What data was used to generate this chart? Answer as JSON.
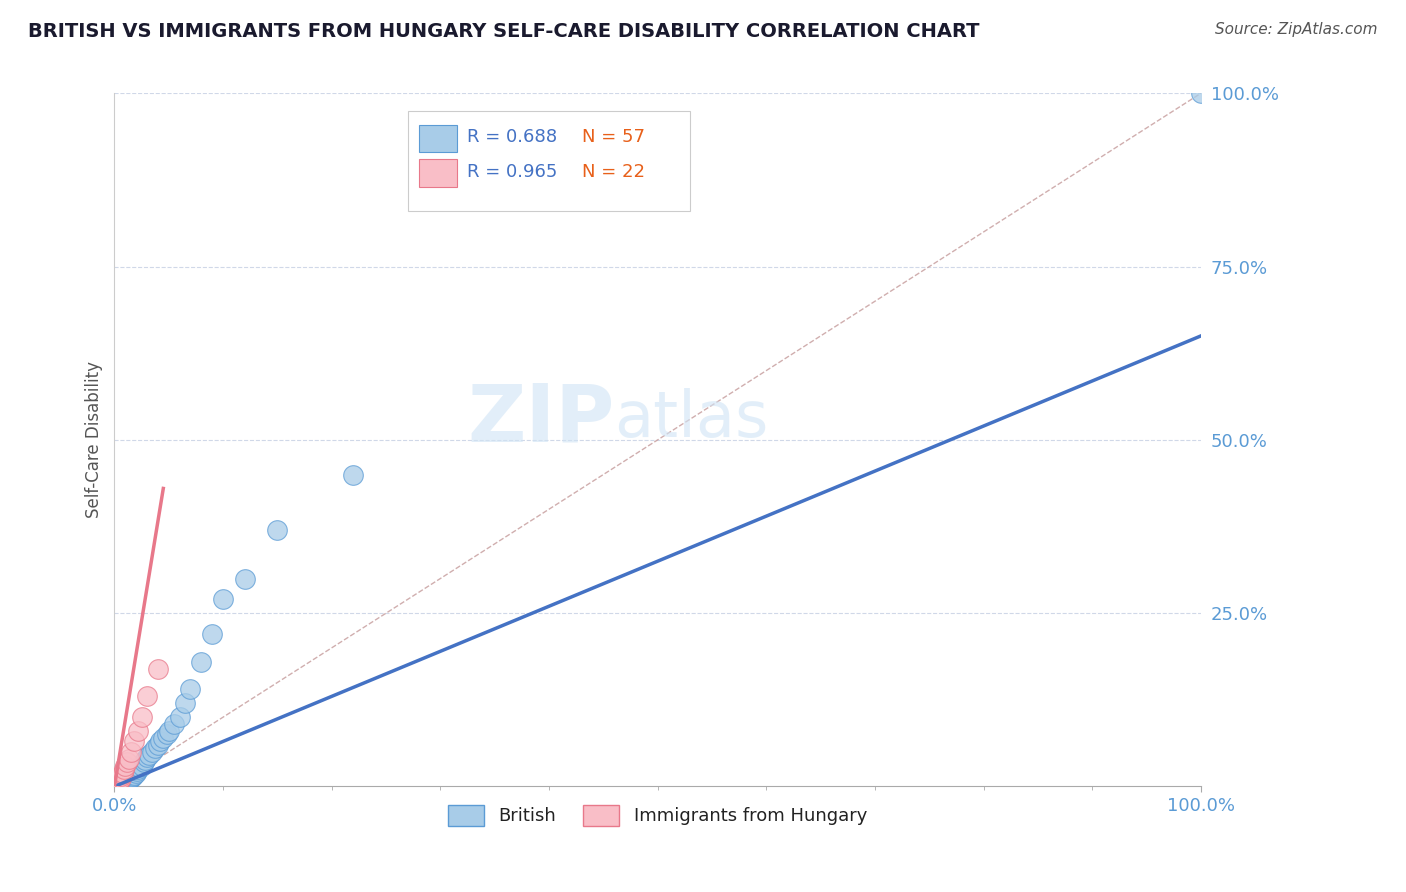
{
  "title": "BRITISH VS IMMIGRANTS FROM HUNGARY SELF-CARE DISABILITY CORRELATION CHART",
  "source": "Source: ZipAtlas.com",
  "ylabel": "Self-Care Disability",
  "british_color": "#a8cce8",
  "british_edge_color": "#5b9bd5",
  "hungary_color": "#f9bec7",
  "hungary_edge_color": "#e8788a",
  "trend_british_color": "#4472c4",
  "trend_hungary_color": "#e8788a",
  "ref_line_color": "#c8a0a0",
  "watermark_color": "#d0e4f5",
  "background_color": "#ffffff",
  "grid_color": "#d0d8e8",
  "axis_tick_color": "#5b9bd5",
  "title_color": "#1a1a2e",
  "source_color": "#555555",
  "ylabel_color": "#555555",
  "legend_R_color": "#4472c4",
  "legend_N_color": "#e8601a",
  "british_R": 0.688,
  "british_N": 57,
  "hungary_R": 0.965,
  "hungary_N": 22,
  "xlim": [
    0,
    1.0
  ],
  "ylim": [
    0,
    1.0
  ],
  "ytick_positions": [
    0.25,
    0.5,
    0.75,
    1.0
  ],
  "ytick_labels": [
    "25.0%",
    "50.0%",
    "75.0%",
    "100.0%"
  ],
  "xtick_positions": [
    0.0,
    1.0
  ],
  "xtick_labels": [
    "0.0%",
    "100.0%"
  ],
  "british_x": [
    0.0,
    0.001,
    0.001,
    0.002,
    0.002,
    0.002,
    0.003,
    0.003,
    0.003,
    0.004,
    0.004,
    0.004,
    0.005,
    0.005,
    0.005,
    0.006,
    0.006,
    0.007,
    0.007,
    0.008,
    0.009,
    0.01,
    0.01,
    0.011,
    0.012,
    0.013,
    0.015,
    0.016,
    0.017,
    0.018,
    0.02,
    0.021,
    0.022,
    0.023,
    0.025,
    0.027,
    0.028,
    0.03,
    0.032,
    0.035,
    0.037,
    0.04,
    0.042,
    0.045,
    0.048,
    0.05,
    0.055,
    0.06,
    0.065,
    0.07,
    0.08,
    0.09,
    0.1,
    0.12,
    0.15,
    0.22,
    1.0
  ],
  "british_y": [
    0.0,
    0.001,
    0.002,
    0.001,
    0.002,
    0.003,
    0.001,
    0.002,
    0.003,
    0.001,
    0.002,
    0.003,
    0.002,
    0.003,
    0.004,
    0.003,
    0.004,
    0.003,
    0.005,
    0.004,
    0.005,
    0.006,
    0.007,
    0.008,
    0.009,
    0.01,
    0.012,
    0.013,
    0.015,
    0.016,
    0.02,
    0.022,
    0.025,
    0.028,
    0.03,
    0.035,
    0.038,
    0.042,
    0.045,
    0.05,
    0.055,
    0.06,
    0.065,
    0.07,
    0.075,
    0.08,
    0.09,
    0.1,
    0.12,
    0.14,
    0.18,
    0.22,
    0.27,
    0.3,
    0.37,
    0.45,
    1.0
  ],
  "hungary_x": [
    0.0,
    0.001,
    0.002,
    0.002,
    0.003,
    0.003,
    0.004,
    0.005,
    0.006,
    0.006,
    0.007,
    0.008,
    0.009,
    0.01,
    0.012,
    0.013,
    0.015,
    0.018,
    0.022,
    0.025,
    0.03,
    0.04
  ],
  "hungary_y": [
    0.002,
    0.003,
    0.004,
    0.006,
    0.005,
    0.008,
    0.009,
    0.01,
    0.012,
    0.015,
    0.018,
    0.02,
    0.025,
    0.03,
    0.035,
    0.04,
    0.05,
    0.065,
    0.08,
    0.1,
    0.13,
    0.17
  ]
}
